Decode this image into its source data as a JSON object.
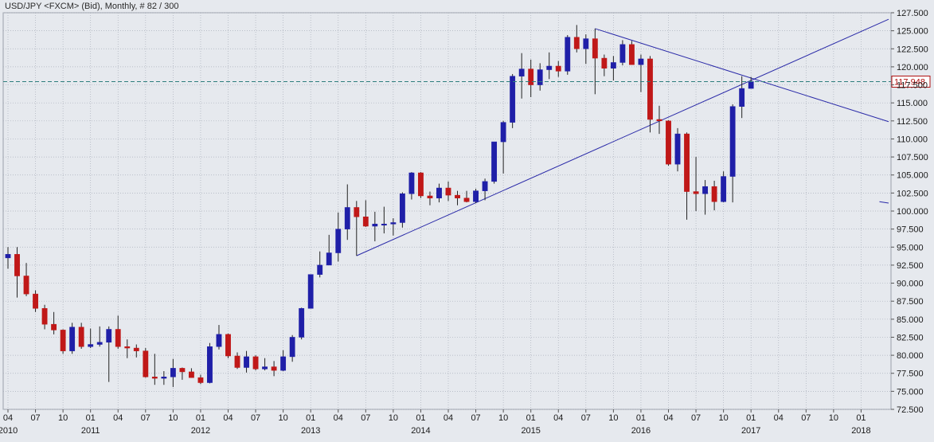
{
  "header": {
    "title": "USD/JPY <FXCM> (Bid), Monthly, # 82 / 300"
  },
  "colors": {
    "background": "#e6e9ee",
    "grid": "#aab0bb",
    "up": "#1f1fa8",
    "down": "#c01818",
    "wick": "#222222",
    "trendline": "#2a2aa8",
    "price_line": "#2e7d7d",
    "price_label": "#b01010"
  },
  "chart_data": {
    "type": "candlestick",
    "title": "USD/JPY <FXCM> (Bid), Monthly, # 82 / 300",
    "ylim": [
      72.5,
      127.5
    ],
    "y_ticks": [
      "72.500",
      "75.000",
      "77.500",
      "80.000",
      "82.500",
      "85.000",
      "87.500",
      "90.000",
      "92.500",
      "95.000",
      "97.500",
      "100.000",
      "102.500",
      "105.000",
      "107.500",
      "110.000",
      "112.500",
      "115.000",
      "117.500",
      "120.000",
      "122.500",
      "125.000",
      "127.500"
    ],
    "current_price": "117.948",
    "grid": true,
    "x_axis": {
      "start": "2010-04",
      "months_labels": [
        "04",
        "07",
        "10",
        "01",
        "04",
        "07",
        "10",
        "01",
        "04",
        "07",
        "10",
        "01",
        "04",
        "07",
        "10",
        "01",
        "04",
        "07",
        "10",
        "01",
        "04",
        "07",
        "10",
        "01",
        "04",
        "07",
        "10",
        "01",
        "04",
        "07",
        "10",
        "01"
      ],
      "label_months": [
        "2010-04",
        "2010-07",
        "2010-10",
        "2011-01",
        "2011-04",
        "2011-07",
        "2011-10",
        "2012-01",
        "2012-04",
        "2012-07",
        "2012-10",
        "2013-01",
        "2013-04",
        "2013-07",
        "2013-10",
        "2014-01",
        "2014-04",
        "2014-07",
        "2014-10",
        "2015-01",
        "2015-04",
        "2015-07",
        "2015-10",
        "2016-01",
        "2016-04",
        "2016-07",
        "2016-10",
        "2017-01",
        "2017-04",
        "2017-07",
        "2017-10",
        "2018-01"
      ],
      "year_labels": [
        {
          "month": "2010-04",
          "label": "2010"
        },
        {
          "month": "2011-01",
          "label": "2011"
        },
        {
          "month": "2012-01",
          "label": "2012"
        },
        {
          "month": "2013-01",
          "label": "2013"
        },
        {
          "month": "2014-01",
          "label": "2014"
        },
        {
          "month": "2015-01",
          "label": "2015"
        },
        {
          "month": "2016-01",
          "label": "2016"
        },
        {
          "month": "2017-01",
          "label": "2017"
        },
        {
          "month": "2018-01",
          "label": "2018"
        }
      ],
      "end_month": "2018-04"
    },
    "series": [
      {
        "month": "2010-04",
        "o": 93.5,
        "h": 95.0,
        "l": 92.0,
        "c": 94.0
      },
      {
        "month": "2010-05",
        "o": 94.0,
        "h": 95.0,
        "l": 88.0,
        "c": 91.0
      },
      {
        "month": "2010-06",
        "o": 91.0,
        "h": 92.8,
        "l": 88.2,
        "c": 88.5
      },
      {
        "month": "2010-07",
        "o": 88.5,
        "h": 89.0,
        "l": 86.0,
        "c": 86.5
      },
      {
        "month": "2010-08",
        "o": 86.5,
        "h": 87.0,
        "l": 83.6,
        "c": 84.3
      },
      {
        "month": "2010-09",
        "o": 84.3,
        "h": 86.0,
        "l": 82.9,
        "c": 83.5
      },
      {
        "month": "2010-10",
        "o": 83.5,
        "h": 83.6,
        "l": 80.2,
        "c": 80.6
      },
      {
        "month": "2010-11",
        "o": 80.6,
        "h": 84.5,
        "l": 80.2,
        "c": 83.9
      },
      {
        "month": "2010-12",
        "o": 83.9,
        "h": 84.5,
        "l": 80.9,
        "c": 81.2
      },
      {
        "month": "2011-01",
        "o": 81.2,
        "h": 83.7,
        "l": 81.0,
        "c": 81.5
      },
      {
        "month": "2011-02",
        "o": 81.5,
        "h": 84.0,
        "l": 81.2,
        "c": 81.8
      },
      {
        "month": "2011-03",
        "o": 81.8,
        "h": 84.0,
        "l": 76.3,
        "c": 83.6
      },
      {
        "month": "2011-04",
        "o": 83.6,
        "h": 85.5,
        "l": 80.9,
        "c": 81.2
      },
      {
        "month": "2011-05",
        "o": 81.2,
        "h": 82.2,
        "l": 79.6,
        "c": 81.0
      },
      {
        "month": "2011-06",
        "o": 81.0,
        "h": 81.5,
        "l": 79.7,
        "c": 80.6
      },
      {
        "month": "2011-07",
        "o": 80.6,
        "h": 81.0,
        "l": 76.9,
        "c": 77.0
      },
      {
        "month": "2011-08",
        "o": 77.0,
        "h": 80.2,
        "l": 75.9,
        "c": 76.8
      },
      {
        "month": "2011-09",
        "o": 76.8,
        "h": 77.8,
        "l": 75.9,
        "c": 77.0
      },
      {
        "month": "2011-10",
        "o": 77.0,
        "h": 79.5,
        "l": 75.6,
        "c": 78.2
      },
      {
        "month": "2011-11",
        "o": 78.2,
        "h": 78.3,
        "l": 76.6,
        "c": 77.7
      },
      {
        "month": "2011-12",
        "o": 77.7,
        "h": 78.2,
        "l": 76.9,
        "c": 76.9
      },
      {
        "month": "2012-01",
        "o": 76.9,
        "h": 77.3,
        "l": 76.0,
        "c": 76.2
      },
      {
        "month": "2012-02",
        "o": 76.2,
        "h": 81.7,
        "l": 76.1,
        "c": 81.2
      },
      {
        "month": "2012-03",
        "o": 81.2,
        "h": 84.2,
        "l": 80.8,
        "c": 82.9
      },
      {
        "month": "2012-04",
        "o": 82.9,
        "h": 83.0,
        "l": 79.6,
        "c": 79.9
      },
      {
        "month": "2012-05",
        "o": 79.9,
        "h": 80.4,
        "l": 78.1,
        "c": 78.3
      },
      {
        "month": "2012-06",
        "o": 78.3,
        "h": 80.6,
        "l": 77.6,
        "c": 79.8
      },
      {
        "month": "2012-07",
        "o": 79.8,
        "h": 80.0,
        "l": 77.9,
        "c": 78.1
      },
      {
        "month": "2012-08",
        "o": 78.1,
        "h": 79.6,
        "l": 77.9,
        "c": 78.4
      },
      {
        "month": "2012-09",
        "o": 78.4,
        "h": 79.2,
        "l": 77.1,
        "c": 77.9
      },
      {
        "month": "2012-10",
        "o": 77.9,
        "h": 80.7,
        "l": 77.8,
        "c": 79.8
      },
      {
        "month": "2012-11",
        "o": 79.8,
        "h": 82.8,
        "l": 79.1,
        "c": 82.5
      },
      {
        "month": "2012-12",
        "o": 82.5,
        "h": 86.6,
        "l": 82.2,
        "c": 86.5
      },
      {
        "month": "2013-01",
        "o": 86.5,
        "h": 91.2,
        "l": 86.5,
        "c": 91.2
      },
      {
        "month": "2013-02",
        "o": 91.2,
        "h": 94.4,
        "l": 90.8,
        "c": 92.5
      },
      {
        "month": "2013-03",
        "o": 92.5,
        "h": 96.7,
        "l": 92.5,
        "c": 94.2
      },
      {
        "month": "2013-04",
        "o": 94.2,
        "h": 99.8,
        "l": 93.0,
        "c": 97.5
      },
      {
        "month": "2013-05",
        "o": 97.5,
        "h": 103.7,
        "l": 96.0,
        "c": 100.5
      },
      {
        "month": "2013-06",
        "o": 100.5,
        "h": 101.4,
        "l": 93.8,
        "c": 99.2
      },
      {
        "month": "2013-07",
        "o": 99.2,
        "h": 101.5,
        "l": 97.8,
        "c": 97.9
      },
      {
        "month": "2013-08",
        "o": 97.9,
        "h": 99.9,
        "l": 95.8,
        "c": 98.2
      },
      {
        "month": "2013-09",
        "o": 98.2,
        "h": 100.6,
        "l": 96.9,
        "c": 98.2
      },
      {
        "month": "2013-10",
        "o": 98.2,
        "h": 99.0,
        "l": 96.6,
        "c": 98.4
      },
      {
        "month": "2013-11",
        "o": 98.4,
        "h": 102.6,
        "l": 97.7,
        "c": 102.4
      },
      {
        "month": "2013-12",
        "o": 102.4,
        "h": 105.4,
        "l": 101.6,
        "c": 105.3
      },
      {
        "month": "2014-01",
        "o": 105.3,
        "h": 105.4,
        "l": 101.8,
        "c": 102.1
      },
      {
        "month": "2014-02",
        "o": 102.1,
        "h": 102.7,
        "l": 100.8,
        "c": 101.8
      },
      {
        "month": "2014-03",
        "o": 101.8,
        "h": 103.8,
        "l": 101.2,
        "c": 103.2
      },
      {
        "month": "2014-04",
        "o": 103.2,
        "h": 104.1,
        "l": 101.4,
        "c": 102.2
      },
      {
        "month": "2014-05",
        "o": 102.2,
        "h": 102.8,
        "l": 100.8,
        "c": 101.8
      },
      {
        "month": "2014-06",
        "o": 101.8,
        "h": 102.8,
        "l": 101.2,
        "c": 101.3
      },
      {
        "month": "2014-07",
        "o": 101.3,
        "h": 103.1,
        "l": 101.1,
        "c": 102.8
      },
      {
        "month": "2014-08",
        "o": 102.8,
        "h": 104.5,
        "l": 101.5,
        "c": 104.1
      },
      {
        "month": "2014-09",
        "o": 104.1,
        "h": 109.5,
        "l": 103.8,
        "c": 109.6
      },
      {
        "month": "2014-10",
        "o": 109.6,
        "h": 112.5,
        "l": 105.2,
        "c": 112.3
      },
      {
        "month": "2014-11",
        "o": 112.3,
        "h": 119.0,
        "l": 111.5,
        "c": 118.7
      },
      {
        "month": "2014-12",
        "o": 118.7,
        "h": 121.9,
        "l": 115.6,
        "c": 119.7
      },
      {
        "month": "2015-01",
        "o": 119.7,
        "h": 121.0,
        "l": 115.8,
        "c": 117.5
      },
      {
        "month": "2015-02",
        "o": 117.5,
        "h": 120.5,
        "l": 116.7,
        "c": 119.6
      },
      {
        "month": "2015-03",
        "o": 119.6,
        "h": 122.0,
        "l": 118.3,
        "c": 120.1
      },
      {
        "month": "2015-04",
        "o": 120.1,
        "h": 120.8,
        "l": 118.6,
        "c": 119.4
      },
      {
        "month": "2015-05",
        "o": 119.4,
        "h": 124.4,
        "l": 118.9,
        "c": 124.1
      },
      {
        "month": "2015-06",
        "o": 124.1,
        "h": 125.8,
        "l": 122.0,
        "c": 122.5
      },
      {
        "month": "2015-07",
        "o": 122.5,
        "h": 124.5,
        "l": 120.4,
        "c": 123.9
      },
      {
        "month": "2015-08",
        "o": 123.9,
        "h": 125.3,
        "l": 116.2,
        "c": 121.2
      },
      {
        "month": "2015-09",
        "o": 121.2,
        "h": 121.7,
        "l": 118.7,
        "c": 119.8
      },
      {
        "month": "2015-10",
        "o": 119.8,
        "h": 121.5,
        "l": 118.1,
        "c": 120.6
      },
      {
        "month": "2015-11",
        "o": 120.6,
        "h": 123.7,
        "l": 120.2,
        "c": 123.1
      },
      {
        "month": "2015-12",
        "o": 123.1,
        "h": 123.6,
        "l": 120.3,
        "c": 120.3
      },
      {
        "month": "2016-01",
        "o": 120.3,
        "h": 121.7,
        "l": 116.5,
        "c": 121.1
      },
      {
        "month": "2016-02",
        "o": 121.1,
        "h": 121.5,
        "l": 110.9,
        "c": 112.7
      },
      {
        "month": "2016-03",
        "o": 112.7,
        "h": 114.6,
        "l": 110.7,
        "c": 112.5
      },
      {
        "month": "2016-04",
        "o": 112.5,
        "h": 112.6,
        "l": 106.3,
        "c": 106.5
      },
      {
        "month": "2016-05",
        "o": 106.5,
        "h": 111.5,
        "l": 105.5,
        "c": 110.7
      },
      {
        "month": "2016-06",
        "o": 110.7,
        "h": 110.9,
        "l": 98.8,
        "c": 102.7
      },
      {
        "month": "2016-07",
        "o": 102.7,
        "h": 107.5,
        "l": 100.0,
        "c": 102.4
      },
      {
        "month": "2016-08",
        "o": 102.4,
        "h": 104.3,
        "l": 99.5,
        "c": 103.4
      },
      {
        "month": "2016-09",
        "o": 103.4,
        "h": 104.2,
        "l": 100.1,
        "c": 101.3
      },
      {
        "month": "2016-10",
        "o": 101.3,
        "h": 105.5,
        "l": 101.2,
        "c": 104.8
      },
      {
        "month": "2016-11",
        "o": 104.8,
        "h": 114.8,
        "l": 101.2,
        "c": 114.5
      },
      {
        "month": "2016-12",
        "o": 114.5,
        "h": 118.7,
        "l": 112.9,
        "c": 117.0
      },
      {
        "month": "2017-01",
        "o": 117.0,
        "h": 118.6,
        "l": 117.0,
        "c": 117.95
      }
    ],
    "trendlines": [
      {
        "from": {
          "month": "2013-06",
          "price": 93.8
        },
        "to": {
          "month": "2018-04",
          "price": 126.6
        }
      },
      {
        "from": {
          "month": "2015-08",
          "price": 125.3
        },
        "to": {
          "month": "2018-04",
          "price": 112.4
        }
      },
      {
        "from": {
          "month": "2018-03",
          "price": 101.3
        },
        "to": {
          "month": "2018-04",
          "price": 101.1
        }
      }
    ]
  }
}
